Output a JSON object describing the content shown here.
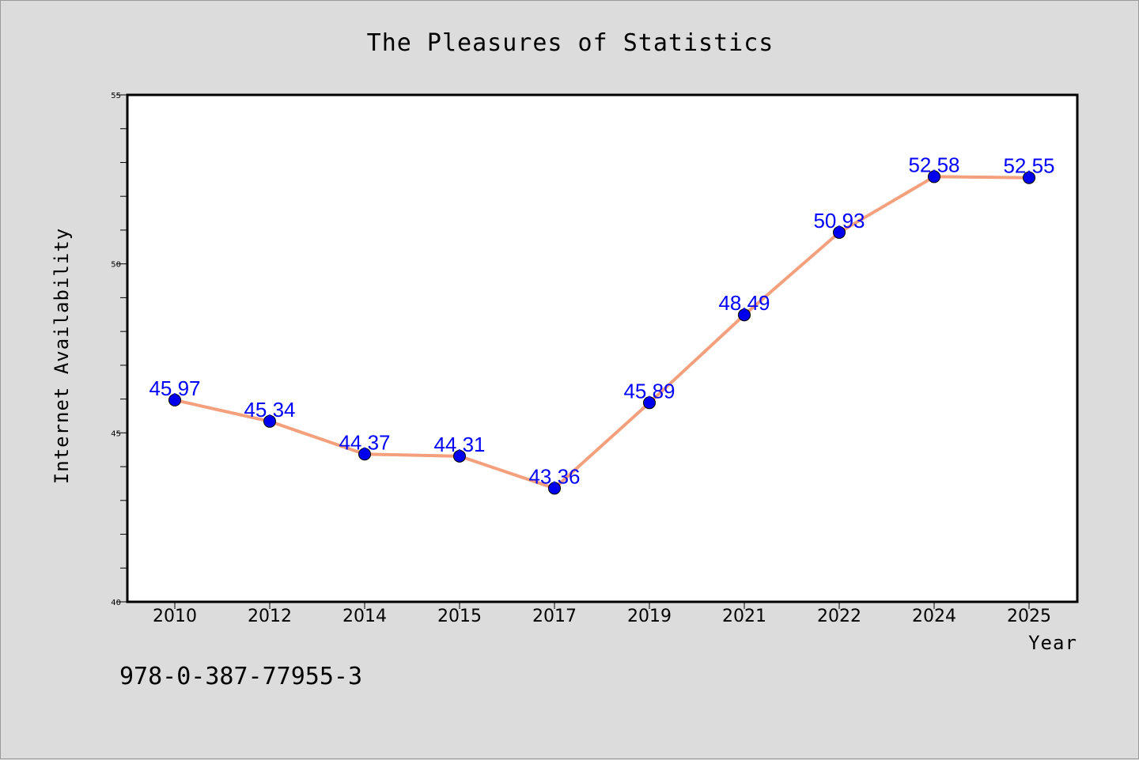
{
  "chart_data": {
    "type": "line",
    "title": "The Pleasures of Statistics",
    "xlabel": "Year",
    "ylabel": "Internet Availability",
    "categories": [
      "2010",
      "2012",
      "2014",
      "2015",
      "2017",
      "2019",
      "2021",
      "2022",
      "2024",
      "2025"
    ],
    "series": [
      {
        "values": [
          45.97,
          45.34,
          44.37,
          44.31,
          43.36,
          45.89,
          48.49,
          50.93,
          52.58,
          52.55
        ],
        "data_labels": [
          "45.97",
          "45.34",
          "44.37",
          "44.31",
          "43.36",
          "45.89",
          "48.49",
          "50.93",
          "52.58",
          "52.55"
        ],
        "line_color": "#f4a07c",
        "marker_color": "#0000ee"
      }
    ],
    "ylim": [
      40,
      55
    ],
    "yticks": [
      "40",
      "45",
      "50",
      "55"
    ],
    "grid": false,
    "legend": "none",
    "label_color": "#0000ff"
  },
  "footer_text": "978-0-387-77955-3",
  "colors": {
    "background": "#dcdcdc",
    "plot_background": "#ffffff",
    "axis": "#000000"
  }
}
